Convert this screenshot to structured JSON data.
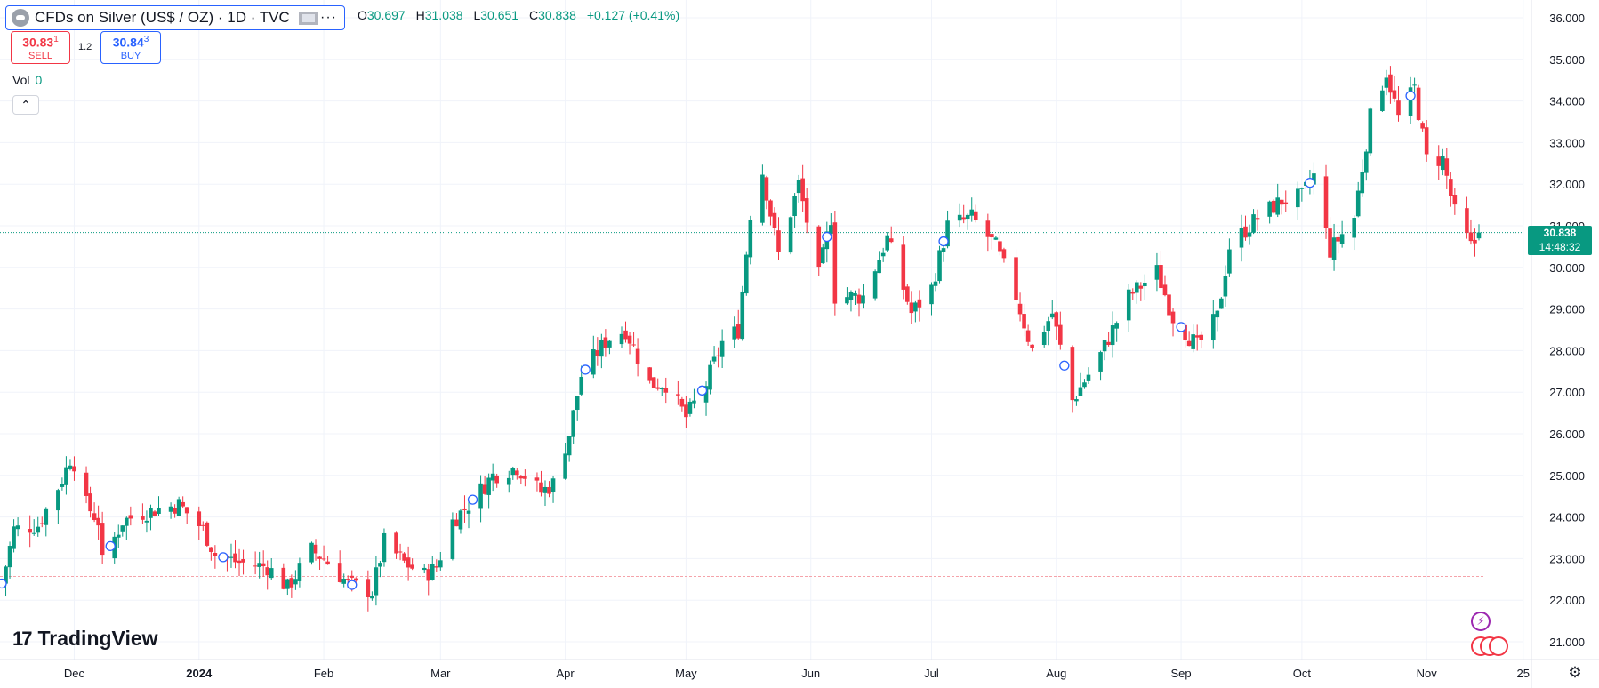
{
  "header": {
    "symbol_title": "CFDs on Silver (US$ / OZ) · 1D · TVC",
    "menu_icon": "more-dots-icon",
    "ohlc": [
      {
        "k": "O",
        "v": "30.697"
      },
      {
        "k": "H",
        "v": "31.038"
      },
      {
        "k": "L",
        "v": "30.651"
      },
      {
        "k": "C",
        "v": "30.838"
      }
    ],
    "change": "+0.127 (+0.41%)"
  },
  "trade": {
    "sell_price_main": "30.83",
    "sell_price_small": "1",
    "sell_label": "SELL",
    "spread": "1.2",
    "buy_price_main": "30.84",
    "buy_price_small": "3",
    "buy_label": "BUY"
  },
  "volume": {
    "label": "Vol",
    "value": "0"
  },
  "collapse_icon": "chevron-up-icon",
  "branding": {
    "logo_mark": "17",
    "logo_text": "TradingView"
  },
  "price_tag": {
    "price": "30.838",
    "countdown": "14:48:32"
  },
  "colors": {
    "up": "#089981",
    "down": "#f23645",
    "accent": "#2962ff",
    "grid": "#f0f3fa"
  },
  "chart_data": {
    "type": "candlestick",
    "title": "CFDs on Silver (US$ / OZ) · 1D · TVC",
    "x_tick_labels": [
      "Dec",
      "2024",
      "Feb",
      "Mar",
      "Apr",
      "May",
      "Jun",
      "Jul",
      "Aug",
      "Sep",
      "Oct",
      "Nov",
      "25"
    ],
    "y_tick_labels": [
      "36.000",
      "35.000",
      "34.000",
      "33.000",
      "32.000",
      "31.000",
      "30.000",
      "29.000",
      "28.000",
      "27.000",
      "26.000",
      "25.000",
      "24.000",
      "23.000",
      "22.000",
      "21.000"
    ],
    "ylim": [
      20.6,
      36.3
    ],
    "last_price": 30.838,
    "reference_level": 22.57,
    "grid": true,
    "close_path": [
      {
        "date": "2023-11-13",
        "close": 22.4
      },
      {
        "date": "2023-11-16",
        "close": 23.7
      },
      {
        "date": "2023-11-22",
        "close": 23.8
      },
      {
        "date": "2023-11-28",
        "close": 24.9
      },
      {
        "date": "2023-11-30",
        "close": 25.4
      },
      {
        "date": "2023-12-01",
        "close": 25.3
      },
      {
        "date": "2023-12-04",
        "close": 24.3
      },
      {
        "date": "2023-12-07",
        "close": 23.9
      },
      {
        "date": "2023-12-08",
        "close": 22.9
      },
      {
        "date": "2023-12-13",
        "close": 23.9
      },
      {
        "date": "2023-12-18",
        "close": 24.1
      },
      {
        "date": "2023-12-27",
        "close": 24.3
      },
      {
        "date": "2024-01-02",
        "close": 23.7
      },
      {
        "date": "2024-01-05",
        "close": 23.1
      },
      {
        "date": "2024-01-11",
        "close": 22.9
      },
      {
        "date": "2024-01-18",
        "close": 22.8
      },
      {
        "date": "2024-01-23",
        "close": 22.3
      },
      {
        "date": "2024-01-29",
        "close": 23.2
      },
      {
        "date": "2024-02-01",
        "close": 23.0
      },
      {
        "date": "2024-02-07",
        "close": 22.4
      },
      {
        "date": "2024-02-13",
        "close": 22.2
      },
      {
        "date": "2024-02-16",
        "close": 23.4
      },
      {
        "date": "2024-02-21",
        "close": 22.9
      },
      {
        "date": "2024-02-26",
        "close": 22.6
      },
      {
        "date": "2024-02-29",
        "close": 22.8
      },
      {
        "date": "2024-03-04",
        "close": 23.9
      },
      {
        "date": "2024-03-08",
        "close": 24.3
      },
      {
        "date": "2024-03-14",
        "close": 25.0
      },
      {
        "date": "2024-03-20",
        "close": 25.2
      },
      {
        "date": "2024-03-26",
        "close": 24.6
      },
      {
        "date": "2024-03-29",
        "close": 24.8
      },
      {
        "date": "2024-04-02",
        "close": 26.0
      },
      {
        "date": "2024-04-05",
        "close": 27.4
      },
      {
        "date": "2024-04-10",
        "close": 28.1
      },
      {
        "date": "2024-04-12",
        "close": 28.3
      },
      {
        "date": "2024-04-16",
        "close": 28.5
      },
      {
        "date": "2024-04-22",
        "close": 27.2
      },
      {
        "date": "2024-04-26",
        "close": 27.2
      },
      {
        "date": "2024-05-01",
        "close": 26.4
      },
      {
        "date": "2024-05-06",
        "close": 27.2
      },
      {
        "date": "2024-05-10",
        "close": 28.2
      },
      {
        "date": "2024-05-14",
        "close": 28.5
      },
      {
        "date": "2024-05-17",
        "close": 31.3
      },
      {
        "date": "2024-05-20",
        "close": 32.3
      },
      {
        "date": "2024-05-24",
        "close": 30.3
      },
      {
        "date": "2024-05-29",
        "close": 32.0
      },
      {
        "date": "2024-06-03",
        "close": 29.8
      },
      {
        "date": "2024-06-06",
        "close": 31.2
      },
      {
        "date": "2024-06-07",
        "close": 29.3
      },
      {
        "date": "2024-06-14",
        "close": 29.3
      },
      {
        "date": "2024-06-20",
        "close": 30.7
      },
      {
        "date": "2024-06-26",
        "close": 28.9
      },
      {
        "date": "2024-07-01",
        "close": 29.5
      },
      {
        "date": "2024-07-05",
        "close": 31.0
      },
      {
        "date": "2024-07-11",
        "close": 31.2
      },
      {
        "date": "2024-07-17",
        "close": 30.5
      },
      {
        "date": "2024-07-22",
        "close": 29.3
      },
      {
        "date": "2024-07-26",
        "close": 28.0
      },
      {
        "date": "2024-07-31",
        "close": 28.9
      },
      {
        "date": "2024-08-05",
        "close": 26.8
      },
      {
        "date": "2024-08-12",
        "close": 27.9
      },
      {
        "date": "2024-08-19",
        "close": 29.3
      },
      {
        "date": "2024-08-26",
        "close": 29.9
      },
      {
        "date": "2024-08-30",
        "close": 28.8
      },
      {
        "date": "2024-09-05",
        "close": 28.1
      },
      {
        "date": "2024-09-10",
        "close": 28.8
      },
      {
        "date": "2024-09-13",
        "close": 30.5
      },
      {
        "date": "2024-09-20",
        "close": 31.2
      },
      {
        "date": "2024-09-26",
        "close": 31.6
      },
      {
        "date": "2024-10-01",
        "close": 31.7
      },
      {
        "date": "2024-10-04",
        "close": 32.2
      },
      {
        "date": "2024-10-08",
        "close": 30.4
      },
      {
        "date": "2024-10-14",
        "close": 31.2
      },
      {
        "date": "2024-10-18",
        "close": 33.6
      },
      {
        "date": "2024-10-22",
        "close": 34.7
      },
      {
        "date": "2024-10-25",
        "close": 33.6
      },
      {
        "date": "2024-10-29",
        "close": 34.3
      },
      {
        "date": "2024-11-01",
        "close": 32.6
      },
      {
        "date": "2024-11-05",
        "close": 32.6
      },
      {
        "date": "2024-11-08",
        "close": 31.3
      },
      {
        "date": "2024-11-12",
        "close": 30.5
      },
      {
        "date": "2024-11-13",
        "close": 30.6
      },
      {
        "date": "2024-11-14",
        "close": 30.838
      }
    ]
  }
}
